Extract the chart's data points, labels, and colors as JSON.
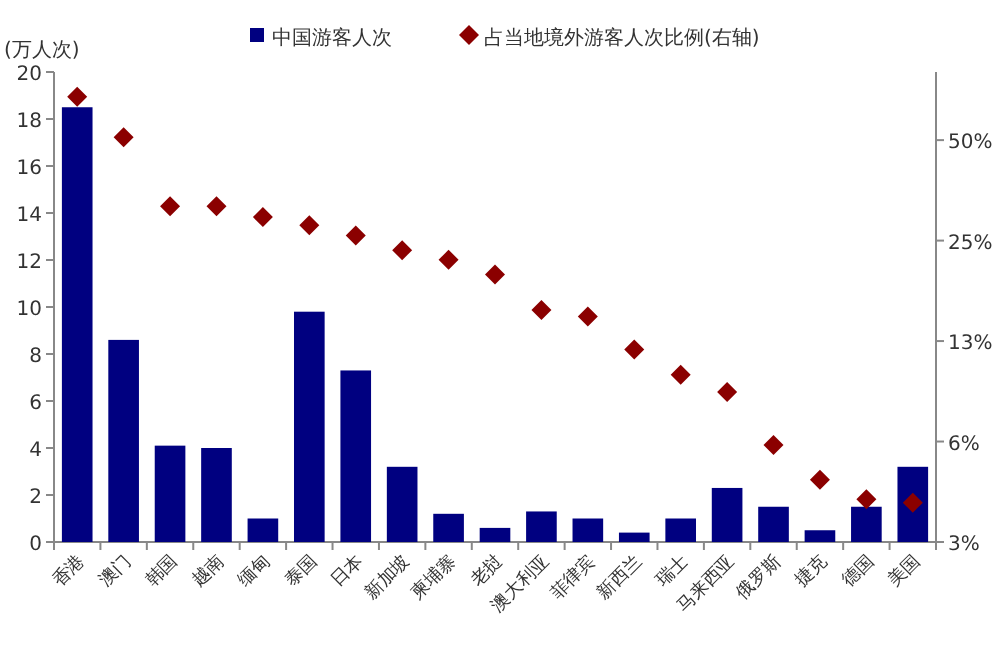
{
  "chart_data": {
    "type": "bar",
    "ylabel": "(万人次)",
    "categories": [
      "香港",
      "澳门",
      "韩国",
      "越南",
      "缅甸",
      "泰国",
      "日本",
      "新加坡",
      "柬埔寨",
      "老挝",
      "澳大利亚",
      "菲律宾",
      "新西兰",
      "瑞士",
      "马来西亚",
      "俄罗斯",
      "捷克",
      "德国",
      "美国"
    ],
    "series": [
      {
        "name": "中国游客人次",
        "color": "#000080",
        "values": [
          18.5,
          8.6,
          4.1,
          4.0,
          1.0,
          9.8,
          7.3,
          3.2,
          1.2,
          0.6,
          1.3,
          1.0,
          0.4,
          1.0,
          2.3,
          1.5,
          0.5,
          1.5,
          3.2
        ]
      },
      {
        "name": "占当地境外游客人次比例(右轴)",
        "type": "scatter",
        "axis": "y2",
        "marker": "diamond",
        "color": "#8b0000",
        "values": [
          67.5,
          51,
          31.7,
          31.7,
          29.4,
          27.8,
          25.9,
          23.4,
          21.9,
          19.8,
          15.5,
          14.8,
          11.8,
          9.9,
          8.8,
          6.1,
          4.8,
          4.2,
          4.1
        ]
      }
    ],
    "ylim": [
      0,
      20
    ],
    "yticks": [
      0,
      2,
      4,
      6,
      8,
      10,
      12,
      14,
      16,
      18,
      20
    ],
    "log": "y2",
    "y2lim": [
      3.125,
      80
    ],
    "y2ticks": [
      {
        "value": 3.125,
        "label": "3%"
      },
      {
        "value": 6.25,
        "label": "6%"
      },
      {
        "value": 12.5,
        "label": "13%"
      },
      {
        "value": 25,
        "label": "25%"
      },
      {
        "value": 50,
        "label": "50%"
      }
    ],
    "legend": "top",
    "grid": false
  }
}
